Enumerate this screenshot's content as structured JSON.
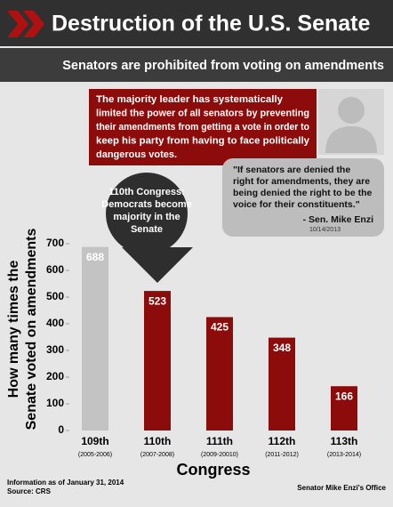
{
  "chart_data": {
    "type": "bar",
    "title": "Destruction of the U.S. Senate",
    "subtitle": "Senators are prohibited from voting on amendments",
    "text_box": [
      "The majority leader has systematically",
      "limited the power of all senators by preventing",
      "their amendments from getting a vote in order to",
      "keep his party from having to face politically",
      "dangerous votes."
    ],
    "quote": [
      "\"If senators are denied the",
      "right for amendments, they are",
      "being denied the right to be the",
      "voice for their constituents.\""
    ],
    "quote_attribution": "- Sen. Mike Enzi",
    "quote_date": "10/14/2013",
    "callout": [
      "110th Congress:",
      "Democrats become",
      "majority in the",
      "Senate"
    ],
    "categories": [
      "109th",
      "110th",
      "111th",
      "112th",
      "113th"
    ],
    "periods": [
      "(2005-2006)",
      "(2007-2008)",
      "(2009-20010)",
      "(2011-2012)",
      "(2013-2014)"
    ],
    "values": [
      688,
      523,
      425,
      348,
      166
    ],
    "colors": [
      "#c3c3c3",
      "#8c0c0c",
      "#8c0c0c",
      "#8c0c0c",
      "#8c0c0c"
    ],
    "ylim": [
      0,
      700
    ],
    "yticks": [
      0,
      100,
      200,
      300,
      400,
      500,
      600,
      700
    ],
    "xlabel": "Congress",
    "ylabel": [
      "How many times the",
      "Senate voted on amendments"
    ],
    "notes": [
      "Information as of January 31, 2014",
      "Source: CRS"
    ],
    "credit": "Senator Mike Enzi's Office"
  }
}
